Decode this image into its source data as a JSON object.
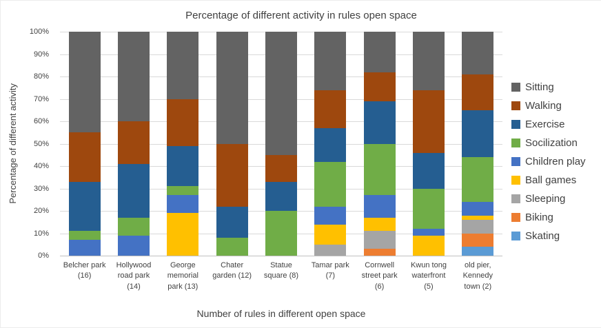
{
  "chart_data": {
    "type": "bar",
    "stacked": true,
    "stacking": "percent",
    "title": "Percentage of different activity in rules open space",
    "xlabel": "Number of rules in different open space",
    "ylabel": "Percentage of different activity",
    "ylim": [
      0,
      100
    ],
    "grid": true,
    "legend_position": "right",
    "y_ticks": [
      "0%",
      "10%",
      "20%",
      "30%",
      "40%",
      "50%",
      "60%",
      "70%",
      "80%",
      "90%",
      "100%"
    ],
    "categories": [
      "Belcher park (16)",
      "Hollywood road park (14)",
      "George memorial park (13)",
      "Chater garden (12)",
      "Statue square (8)",
      "Tamar park (7)",
      "Cornwell street park (6)",
      "Kwun tong waterfront (5)",
      "old pier, Kennedy town (2)"
    ],
    "series": [
      {
        "name": "Skating",
        "color": "#5B9BD5",
        "values": [
          0,
          0,
          0,
          0,
          0,
          0,
          0,
          0,
          4
        ]
      },
      {
        "name": "Biking",
        "color": "#ED7D31",
        "values": [
          0,
          0,
          0,
          0,
          0,
          0,
          3,
          0,
          6
        ]
      },
      {
        "name": "Sleeping",
        "color": "#A5A5A5",
        "values": [
          0,
          0,
          0,
          0,
          0,
          5,
          8,
          0,
          6
        ]
      },
      {
        "name": "Ball games",
        "color": "#FFC000",
        "values": [
          0,
          0,
          19,
          0,
          0,
          9,
          6,
          9,
          2
        ]
      },
      {
        "name": "Children play",
        "color": "#4472C4",
        "values": [
          7,
          9,
          8,
          0,
          0,
          8,
          10,
          3,
          6
        ]
      },
      {
        "name": "Socilization",
        "color": "#70AD47",
        "values": [
          4,
          8,
          4,
          8,
          20,
          20,
          23,
          18,
          20
        ]
      },
      {
        "name": "Exercise",
        "color": "#255E91",
        "values": [
          22,
          24,
          18,
          14,
          13,
          15,
          19,
          16,
          21
        ]
      },
      {
        "name": "Walking",
        "color": "#9E480E",
        "values": [
          22,
          19,
          21,
          28,
          12,
          17,
          13,
          28,
          16
        ]
      },
      {
        "name": "Sitting",
        "color": "#636363",
        "values": [
          45,
          40,
          30,
          50,
          55,
          26,
          18,
          26,
          19
        ]
      }
    ],
    "legend": [
      "Sitting",
      "Walking",
      "Exercise",
      "Socilization",
      "Children play",
      "Ball games",
      "Sleeping",
      "Biking",
      "Skating"
    ]
  }
}
